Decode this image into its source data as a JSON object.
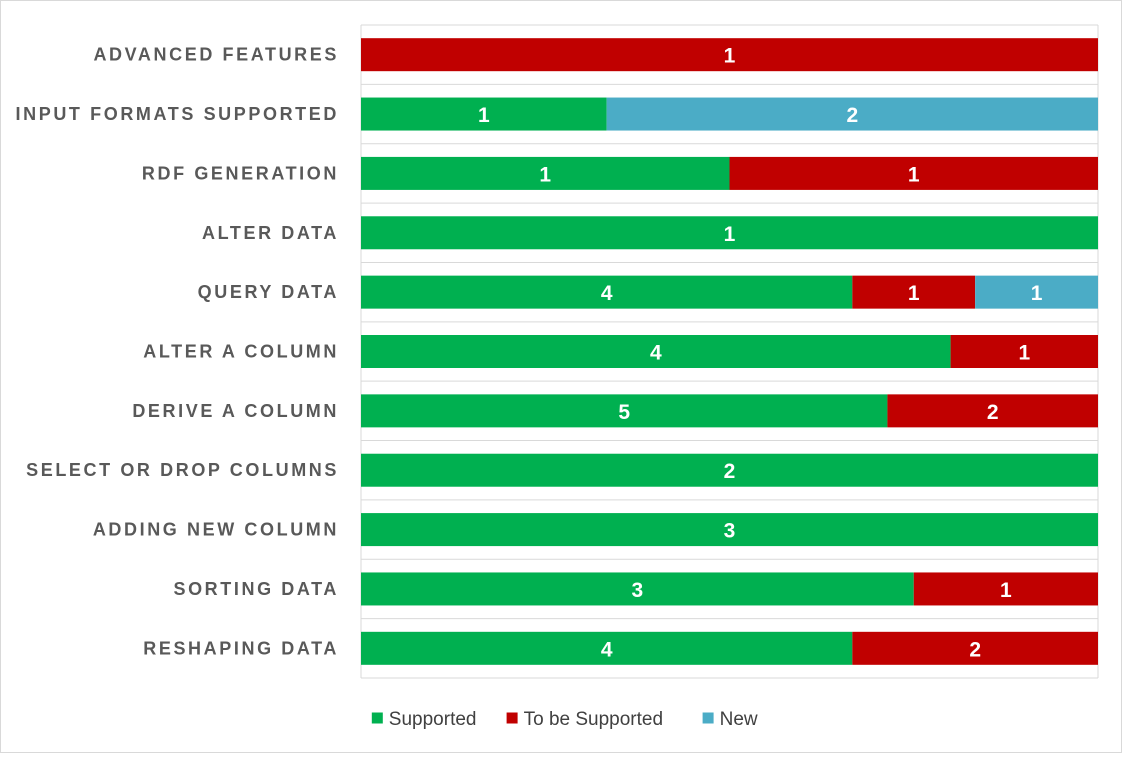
{
  "chart_data": {
    "type": "bar",
    "orientation": "horizontal",
    "stacking": "percent",
    "title": "",
    "xlabel": "",
    "ylabel": "",
    "categories": [
      "ADVANCED FEATURES",
      "INPUT FORMATS SUPPORTED",
      "RDF GENERATION",
      "ALTER DATA",
      "QUERY DATA",
      "ALTER A COLUMN",
      "DERIVE A COLUMN",
      "SELECT OR DROP COLUMNS",
      "ADDING NEW COLUMN",
      "SORTING DATA",
      "RESHAPING DATA"
    ],
    "series": [
      {
        "name": "Supported",
        "color": "#00b050",
        "label_color": "#ffffff",
        "values": [
          0,
          1,
          1,
          1,
          4,
          4,
          5,
          2,
          3,
          3,
          4
        ]
      },
      {
        "name": "To be Supported",
        "color": "#c00000",
        "label_color": "#ffffff",
        "values": [
          1,
          0,
          1,
          0,
          1,
          1,
          2,
          0,
          0,
          1,
          2
        ]
      },
      {
        "name": "New",
        "color": "#4bacc6",
        "label_color": "#ffffff",
        "values": [
          0,
          2,
          0,
          0,
          1,
          0,
          0,
          0,
          0,
          0,
          0
        ]
      }
    ],
    "legend": {
      "position": "bottom"
    },
    "grid": true
  }
}
